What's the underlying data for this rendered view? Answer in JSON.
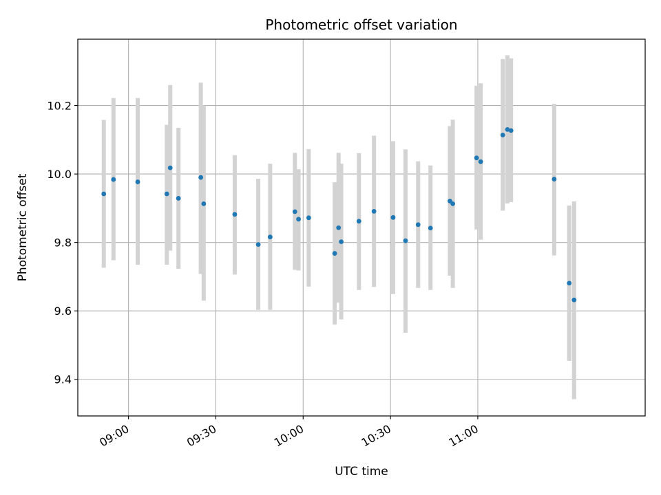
{
  "chart_data": {
    "type": "scatter",
    "title": "Photometric offset variation",
    "xlabel": "UTC time",
    "ylabel": "Photometric offset",
    "x_unit": "UTC time (HH:MM)",
    "xlim": [
      "08:42:35",
      "11:57:30"
    ],
    "ylim": [
      9.293,
      10.394
    ],
    "x_ticks": [
      "09:00",
      "09:30",
      "10:00",
      "10:30",
      "11:00"
    ],
    "y_ticks": [
      9.4,
      9.6,
      9.8,
      10.0,
      10.2
    ],
    "grid": true,
    "point_color": "#1f77b4",
    "errorbar_color": "#d3d3d3",
    "points": [
      {
        "t": "08:51:30",
        "y": 9.942,
        "lo": 9.726,
        "hi": 10.158
      },
      {
        "t": "08:54:50",
        "y": 9.984,
        "lo": 9.748,
        "hi": 10.222
      },
      {
        "t": "09:03:10",
        "y": 9.977,
        "lo": 9.735,
        "hi": 10.222
      },
      {
        "t": "09:13:10",
        "y": 9.942,
        "lo": 9.735,
        "hi": 10.144
      },
      {
        "t": "09:14:20",
        "y": 10.018,
        "lo": 9.776,
        "hi": 10.26
      },
      {
        "t": "09:17:10",
        "y": 9.929,
        "lo": 9.723,
        "hi": 10.135
      },
      {
        "t": "09:24:50",
        "y": 9.99,
        "lo": 9.708,
        "hi": 10.267
      },
      {
        "t": "09:25:50",
        "y": 9.913,
        "lo": 9.63,
        "hi": 10.2
      },
      {
        "t": "09:36:30",
        "y": 9.882,
        "lo": 9.706,
        "hi": 10.055
      },
      {
        "t": "09:44:35",
        "y": 9.794,
        "lo": 9.603,
        "hi": 9.986
      },
      {
        "t": "09:48:40",
        "y": 9.816,
        "lo": 9.603,
        "hi": 10.03
      },
      {
        "t": "09:57:10",
        "y": 9.89,
        "lo": 9.72,
        "hi": 10.062
      },
      {
        "t": "09:58:25",
        "y": 9.868,
        "lo": 9.718,
        "hi": 10.014
      },
      {
        "t": "10:01:55",
        "y": 9.872,
        "lo": 9.671,
        "hi": 10.073
      },
      {
        "t": "10:10:50",
        "y": 9.768,
        "lo": 9.56,
        "hi": 9.976
      },
      {
        "t": "10:12:10",
        "y": 9.843,
        "lo": 9.624,
        "hi": 10.062
      },
      {
        "t": "10:13:05",
        "y": 9.802,
        "lo": 9.575,
        "hi": 10.03
      },
      {
        "t": "10:19:10",
        "y": 9.862,
        "lo": 9.661,
        "hi": 10.061
      },
      {
        "t": "10:24:20",
        "y": 9.891,
        "lo": 9.67,
        "hi": 10.112
      },
      {
        "t": "10:30:55",
        "y": 9.873,
        "lo": 9.649,
        "hi": 10.096
      },
      {
        "t": "10:35:10",
        "y": 9.805,
        "lo": 9.536,
        "hi": 10.072
      },
      {
        "t": "10:39:30",
        "y": 9.852,
        "lo": 9.667,
        "hi": 10.037
      },
      {
        "t": "10:43:45",
        "y": 9.842,
        "lo": 9.661,
        "hi": 10.025
      },
      {
        "t": "10:50:25",
        "y": 9.921,
        "lo": 9.703,
        "hi": 10.14
      },
      {
        "t": "10:51:25",
        "y": 9.913,
        "lo": 9.667,
        "hi": 10.159
      },
      {
        "t": "10:59:35",
        "y": 10.047,
        "lo": 9.838,
        "hi": 10.258
      },
      {
        "t": "11:01:00",
        "y": 10.036,
        "lo": 9.808,
        "hi": 10.265
      },
      {
        "t": "11:08:35",
        "y": 10.114,
        "lo": 9.893,
        "hi": 10.336
      },
      {
        "t": "11:10:10",
        "y": 10.13,
        "lo": 9.914,
        "hi": 10.347
      },
      {
        "t": "11:11:25",
        "y": 10.127,
        "lo": 9.918,
        "hi": 10.338
      },
      {
        "t": "11:26:15",
        "y": 9.985,
        "lo": 9.762,
        "hi": 10.205
      },
      {
        "t": "11:31:25",
        "y": 9.681,
        "lo": 9.454,
        "hi": 9.908
      },
      {
        "t": "11:33:05",
        "y": 9.632,
        "lo": 9.342,
        "hi": 9.92
      }
    ]
  }
}
